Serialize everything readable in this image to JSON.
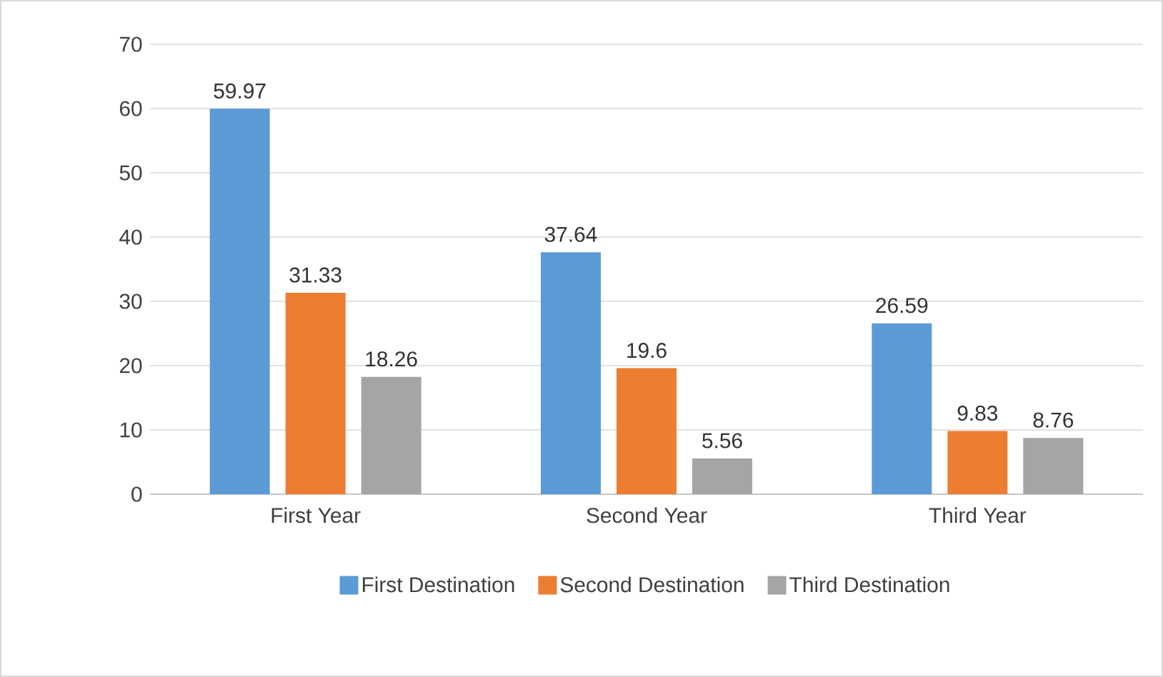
{
  "chart_data": {
    "type": "bar",
    "categories": [
      "First Year",
      "Second Year",
      "Third Year"
    ],
    "series": [
      {
        "name": "First Destination",
        "color": "#5b9bd5",
        "values": [
          59.97,
          37.64,
          26.59
        ]
      },
      {
        "name": "Second Destination",
        "color": "#ed7d31",
        "values": [
          31.33,
          19.6,
          9.83
        ]
      },
      {
        "name": "Third Destination",
        "color": "#a5a5a5",
        "values": [
          18.26,
          5.56,
          8.76
        ]
      }
    ],
    "ylim": [
      0,
      70
    ],
    "yticks": [
      0,
      10,
      20,
      30,
      40,
      50,
      60,
      70
    ],
    "grid": "y",
    "legend": "bottom",
    "data_labels": true
  }
}
